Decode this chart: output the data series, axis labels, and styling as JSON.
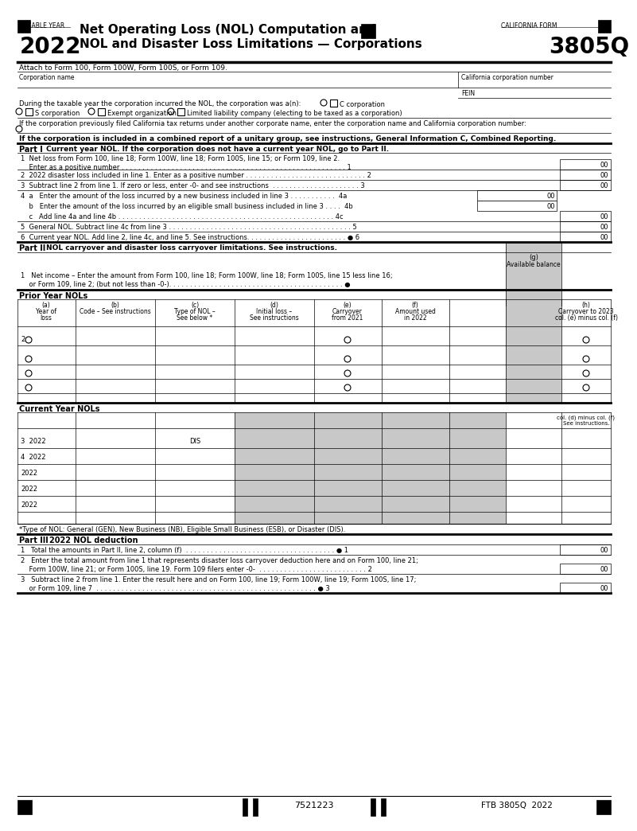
{
  "title_year": "2022",
  "title_line1": "Net Operating Loss (NOL) Computation and",
  "title_line2": "NOL and Disaster Loss Limitations — Corporations",
  "taxable_year_label": "TAXABLE YEAR",
  "california_form_label": "CALIFORNIA FORM",
  "form_number": "3805Q",
  "attach_line": "Attach to Form 100, Form 100W, Form 100S, or Form 109.",
  "corp_name_label": "Corporation name",
  "ca_corp_num_label": "California corporation number",
  "fein_label": "FEIN",
  "during_line": "During the taxable year the corporation incurred the NOL, the corporation was a(n):",
  "c_corp": "C corporation",
  "s_corp": "S corporation",
  "exempt_org": "Exempt organization",
  "llc": "Limited liability company (electing to be taxed as a corporation)",
  "prev_filed_line": "If the corporation previously filed California tax returns under another corporate name, enter the corporation name and California corporation number:",
  "combined_report_line": "If the corporation is included in a combined report of a unitary group, see instructions, General Information C, Combined Reporting.",
  "part1_label": "Part I",
  "part1_title": "Current year NOL. If the corporation does not have a current year NOL, go to Part II.",
  "part2_label": "Part II",
  "part2_title": "NOL carryover and disaster loss carryover limitations. See instructions.",
  "prior_year_nols": "Prior Year NOLs",
  "current_year_nols": "Current Year NOLs",
  "nol_type_note": "*Type of NOL: General (GEN), New Business (NB), Eligible Small Business (ESB), or Disaster (DIS).",
  "part3_label": "Part III",
  "part3_title": "2022 NOL deduction",
  "footer_barcode": "7521223",
  "footer_text": "FTB 3805Q  2022",
  "bg_color": "#ffffff",
  "gray_color": "#c8c8c8"
}
